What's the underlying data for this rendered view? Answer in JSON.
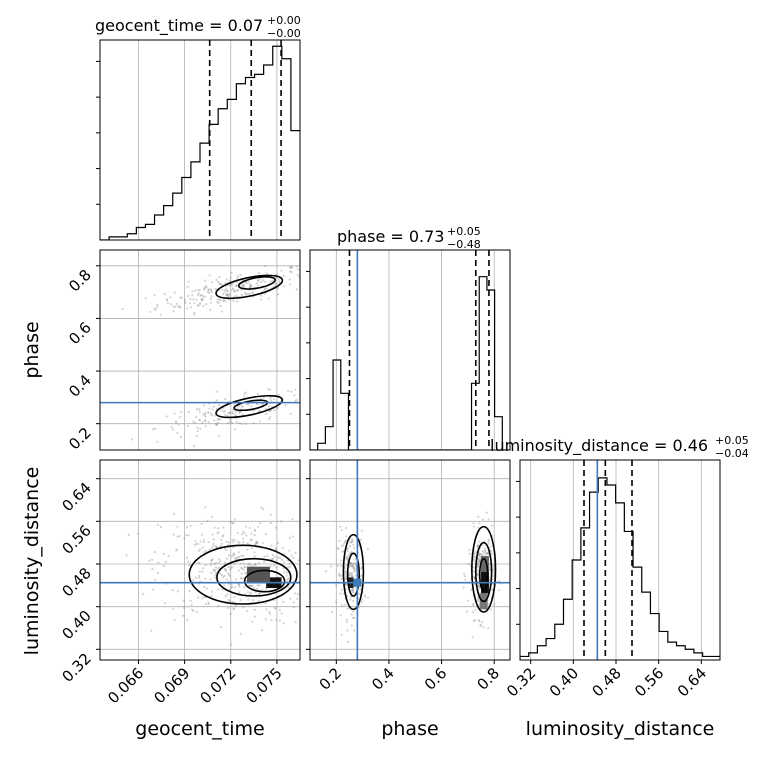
{
  "colors": {
    "truth": "#3d7ab8",
    "hist": "#000000",
    "grid": "#b0b0b0",
    "contour": "#000000",
    "scatter": "#808080"
  },
  "chart_data": {
    "type": "corner",
    "parameters": [
      "geocent_time",
      "phase",
      "luminosity_distance"
    ],
    "truths": {
      "phase": 0.28,
      "luminosity_distance": 0.445
    },
    "titles": [
      {
        "param": "geocent_time",
        "main": "geocent_time = 0.07",
        "sup": "+0.00",
        "sub": "−0.00"
      },
      {
        "param": "phase",
        "main": "phase = 0.73",
        "sup": "+0.05",
        "sub": "−0.48"
      },
      {
        "param": "luminosity_distance",
        "main": "luminosity_distance = 0.46",
        "sup": "+0.05",
        "sub": "−0.04"
      }
    ],
    "axes": {
      "geocent_time": {
        "range": [
          0.0635,
          0.0765
        ],
        "ticks": [
          "0.066",
          "0.069",
          "0.072",
          "0.075"
        ],
        "tick_values": [
          0.066,
          0.069,
          0.072,
          0.075
        ],
        "label": "geocent_time"
      },
      "phase": {
        "range": [
          0.1,
          0.86
        ],
        "ticks": [
          "0.2",
          "0.4",
          "0.6",
          "0.8"
        ],
        "tick_values": [
          0.2,
          0.4,
          0.6,
          0.8
        ],
        "label": "phase"
      },
      "luminosity_distance": {
        "range": [
          0.3,
          0.675
        ],
        "ticks": [
          "0.32",
          "0.40",
          "0.48",
          "0.56",
          "0.64"
        ],
        "tick_values": [
          0.32,
          0.4,
          0.48,
          0.56,
          0.64
        ],
        "label": "luminosity_distance"
      }
    },
    "histograms": [
      {
        "param": "geocent_time",
        "range": [
          0.0635,
          0.0765
        ],
        "counts": [
          0,
          1,
          1,
          2,
          4,
          5,
          8,
          11,
          15,
          20,
          25,
          31,
          37,
          42,
          45,
          50,
          52,
          53,
          56,
          62,
          58,
          35
        ],
        "quantiles": [
          0.07063,
          0.07333,
          0.07527
        ],
        "ylim": [
          0,
          64
        ]
      },
      {
        "param": "phase",
        "range": [
          0.1,
          0.86
        ],
        "counts": [
          0,
          2,
          7,
          27,
          17,
          0,
          0,
          0,
          0,
          0,
          0,
          0,
          0,
          0,
          0,
          0,
          0,
          0,
          0,
          0,
          0,
          20,
          52,
          48,
          10,
          0
        ],
        "quantiles": [
          0.25,
          0.73,
          0.78
        ],
        "ylim": [
          0,
          60
        ]
      },
      {
        "param": "luminosity_distance",
        "range": [
          0.3,
          0.675
        ],
        "counts": [
          1,
          2,
          4,
          6,
          10,
          17,
          28,
          37,
          47,
          51,
          49,
          44,
          36,
          26,
          19,
          13,
          8,
          5,
          4,
          3,
          2,
          1,
          1
        ],
        "quantiles": [
          0.42,
          0.46,
          0.51
        ],
        "ylim": [
          0,
          56
        ]
      }
    ],
    "scatter_panels": [
      {
        "x": "geocent_time",
        "y": "phase",
        "clusters": [
          {
            "n": 260,
            "cx": 0.0722,
            "cy": 0.71,
            "sx": 0.0025,
            "sy": 0.04,
            "rho": 0.7
          },
          {
            "n": 180,
            "cx": 0.0722,
            "cy": 0.24,
            "sx": 0.0025,
            "sy": 0.04,
            "rho": 0.7
          }
        ]
      },
      {
        "x": "geocent_time",
        "y": "luminosity_distance",
        "clusters": [
          {
            "n": 450,
            "cx": 0.0725,
            "cy": 0.47,
            "sx": 0.0025,
            "sy": 0.05,
            "rho": -0.1
          }
        ]
      },
      {
        "x": "phase",
        "y": "luminosity_distance",
        "clusters": [
          {
            "n": 200,
            "cx": 0.255,
            "cy": 0.46,
            "sx": 0.025,
            "sy": 0.04,
            "rho": 0.0
          },
          {
            "n": 250,
            "cx": 0.75,
            "cy": 0.46,
            "sx": 0.025,
            "sy": 0.04,
            "rho": 0.0
          }
        ]
      }
    ],
    "contours": [
      {
        "x": "geocent_time",
        "y": "phase",
        "levels": [
          {
            "cx": 0.0732,
            "cy": 0.72,
            "rx": 0.0022,
            "ry": 0.035,
            "angle": -12
          },
          {
            "cx": 0.0737,
            "cy": 0.735,
            "rx": 0.0012,
            "ry": 0.02,
            "angle": -10
          },
          {
            "cx": 0.0732,
            "cy": 0.265,
            "rx": 0.0022,
            "ry": 0.032,
            "angle": -12
          },
          {
            "cx": 0.0733,
            "cy": 0.27,
            "rx": 0.0011,
            "ry": 0.016,
            "angle": -10
          }
        ]
      },
      {
        "x": "geocent_time",
        "y": "luminosity_distance",
        "levels": [
          {
            "cx": 0.0728,
            "cy": 0.46,
            "rx": 0.0035,
            "ry": 0.055,
            "angle": 0
          },
          {
            "cx": 0.0735,
            "cy": 0.455,
            "rx": 0.0024,
            "ry": 0.035,
            "angle": 0
          },
          {
            "cx": 0.0742,
            "cy": 0.448,
            "rx": 0.0013,
            "ry": 0.02,
            "angle": 0
          }
        ]
      },
      {
        "x": "phase",
        "y": "luminosity_distance",
        "levels": [
          {
            "cx": 0.265,
            "cy": 0.465,
            "rx": 0.038,
            "ry": 0.07,
            "angle": 0
          },
          {
            "cx": 0.265,
            "cy": 0.46,
            "rx": 0.022,
            "ry": 0.04,
            "angle": 0
          },
          {
            "cx": 0.76,
            "cy": 0.47,
            "rx": 0.045,
            "ry": 0.08,
            "angle": 0
          },
          {
            "cx": 0.76,
            "cy": 0.465,
            "rx": 0.03,
            "ry": 0.055,
            "angle": 0
          },
          {
            "cx": 0.76,
            "cy": 0.46,
            "rx": 0.015,
            "ry": 0.03,
            "angle": 0
          }
        ]
      }
    ],
    "density_blocks": [
      {
        "x": "phase",
        "y": "luminosity_distance",
        "cx": 0.765,
        "cy": 0.445,
        "w": 0.03,
        "h": 0.04,
        "shade": "#111111"
      },
      {
        "x": "phase",
        "y": "luminosity_distance",
        "cx": 0.765,
        "cy": 0.48,
        "w": 0.03,
        "h": 0.03,
        "shade": "#666666"
      },
      {
        "x": "phase",
        "y": "luminosity_distance",
        "cx": 0.76,
        "cy": 0.41,
        "w": 0.03,
        "h": 0.03,
        "shade": "#777777"
      },
      {
        "x": "geocent_time",
        "y": "luminosity_distance",
        "cx": 0.0748,
        "cy": 0.445,
        "w": 0.001,
        "h": 0.02,
        "shade": "#111111"
      },
      {
        "x": "geocent_time",
        "y": "luminosity_distance",
        "cx": 0.0738,
        "cy": 0.46,
        "w": 0.0015,
        "h": 0.03,
        "shade": "#555555"
      },
      {
        "x": "phase",
        "y": "luminosity_distance",
        "cx": 0.255,
        "cy": 0.445,
        "w": 0.02,
        "h": 0.02,
        "shade": "#222222"
      }
    ]
  }
}
